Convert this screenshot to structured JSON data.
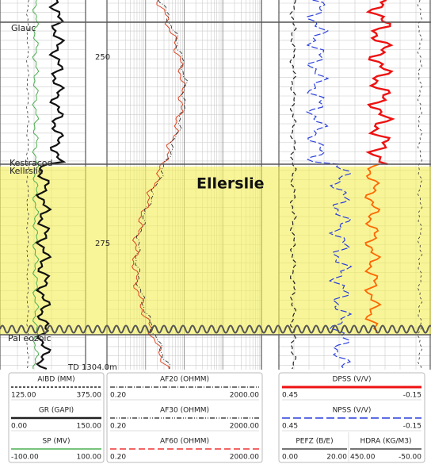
{
  "log": {
    "tops": [
      "Glauc",
      "Kestracod",
      "Kellrslie",
      "Pal eozoic"
    ],
    "depths": [
      "250",
      "275"
    ],
    "zone": "Ellerslie",
    "td": "TD 1304.0m"
  },
  "headers": [
    {
      "name": "AIBD (MM)",
      "left": "125.00",
      "right": "375.00"
    },
    {
      "name": "GR (GAPI)",
      "left": "0.00",
      "right": "150.00"
    },
    {
      "name": "SP (MV)",
      "left": "-100.00",
      "right": "100.00"
    },
    {
      "name": "AF20 (OHMM)",
      "left": "0.20",
      "right": "2000.00"
    },
    {
      "name": "AF30 (OHMM)",
      "left": "0.20",
      "right": "2000.00"
    },
    {
      "name": "AF60 (OHMM)",
      "left": "0.20",
      "right": "2000.00"
    },
    {
      "name": "DPSS (V/V)",
      "left": "0.45",
      "right": "-0.15"
    },
    {
      "name": "NPSS (V/V)",
      "left": "0.45",
      "right": "-0.15"
    },
    {
      "name": "PEFZ (B/E)",
      "left": "0.00",
      "right": "20.00"
    },
    {
      "name": "HDRA (KG/M3)",
      "left": "450.00",
      "right": "-50.00"
    }
  ]
}
